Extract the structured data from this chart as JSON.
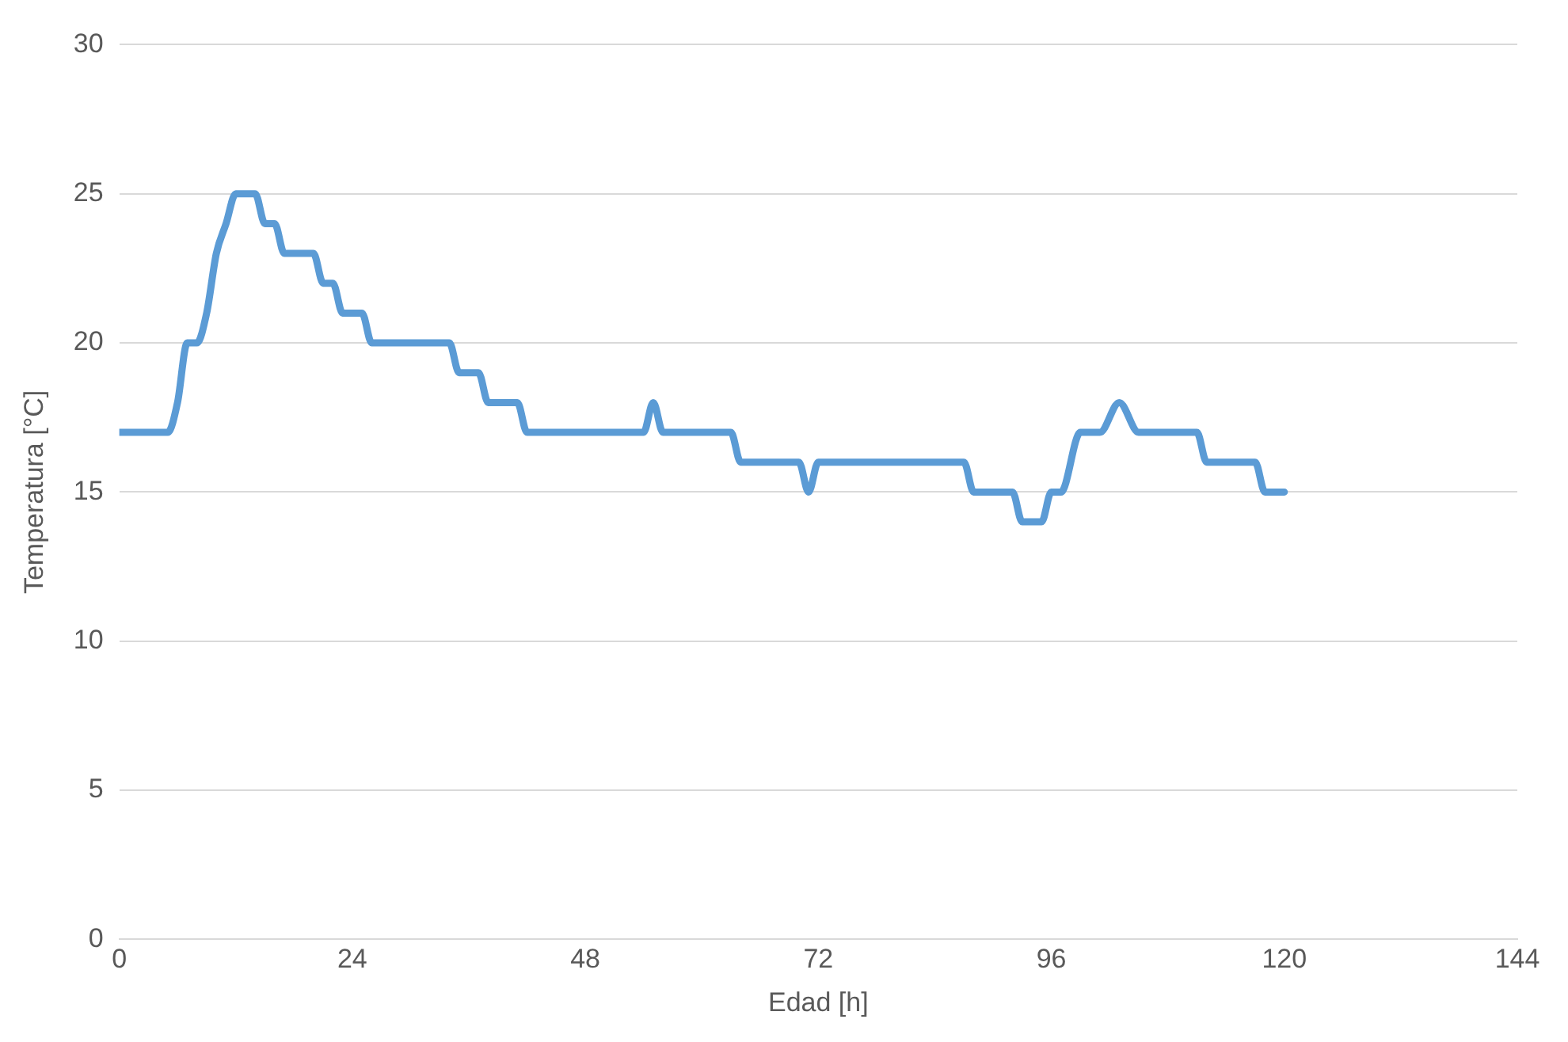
{
  "chart_data": {
    "type": "line",
    "xlabel": "Edad [h]",
    "ylabel": "Temperatura [°C]",
    "x": [
      0,
      5,
      6,
      7,
      8,
      9,
      10,
      11,
      12,
      14,
      15,
      16,
      17,
      20,
      21,
      22,
      23,
      25,
      26,
      34,
      35,
      37,
      38,
      41,
      42,
      54,
      55,
      56,
      63,
      64,
      70,
      71,
      72,
      87,
      88,
      92,
      93,
      95,
      96,
      97,
      99,
      101,
      103,
      105,
      111,
      112,
      117,
      118,
      120
    ],
    "series": [
      {
        "color": "#5b9bd5",
        "values": [
          17,
          17,
          18,
          20,
          20,
          21,
          23,
          24,
          25,
          25,
          24,
          24,
          23,
          23,
          22,
          22,
          21,
          21,
          20,
          20,
          19,
          19,
          18,
          18,
          17,
          17,
          18,
          17,
          17,
          16,
          16,
          15,
          16,
          16,
          15,
          15,
          14,
          14,
          15,
          15,
          17,
          17,
          18,
          17,
          17,
          16,
          16,
          15,
          15
        ]
      }
    ],
    "xlim": [
      0,
      144
    ],
    "xticks": [
      0,
      24,
      48,
      72,
      96,
      120,
      144
    ],
    "ylim": [
      0,
      30
    ],
    "yticks": [
      0,
      5,
      10,
      15,
      20,
      25,
      30
    ],
    "grid": "y",
    "legend": false,
    "marker": "none",
    "line_style": "solid"
  }
}
